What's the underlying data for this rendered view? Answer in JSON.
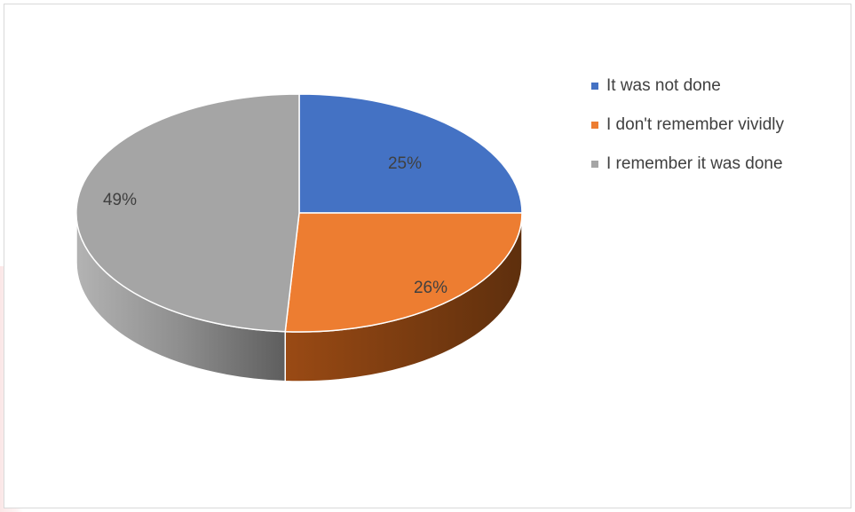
{
  "chart_data": {
    "type": "pie",
    "style": "3d",
    "title": "",
    "categories": [
      "It was not done",
      "I don't remember vividly",
      "I remember it was done"
    ],
    "values": [
      25,
      26,
      49
    ],
    "data_labels": [
      "25%",
      "26%",
      "49%"
    ],
    "colors": [
      "#4472c4",
      "#ed7d31",
      "#a5a5a5"
    ],
    "side_colors": {
      "orange": [
        "#9a4a14",
        "#5e2f0d"
      ],
      "gray": [
        "#b3b3b3",
        "#8e8e8e",
        "#5e5e5e"
      ]
    },
    "legend_position": "right",
    "start_angle_degrees": 0
  }
}
